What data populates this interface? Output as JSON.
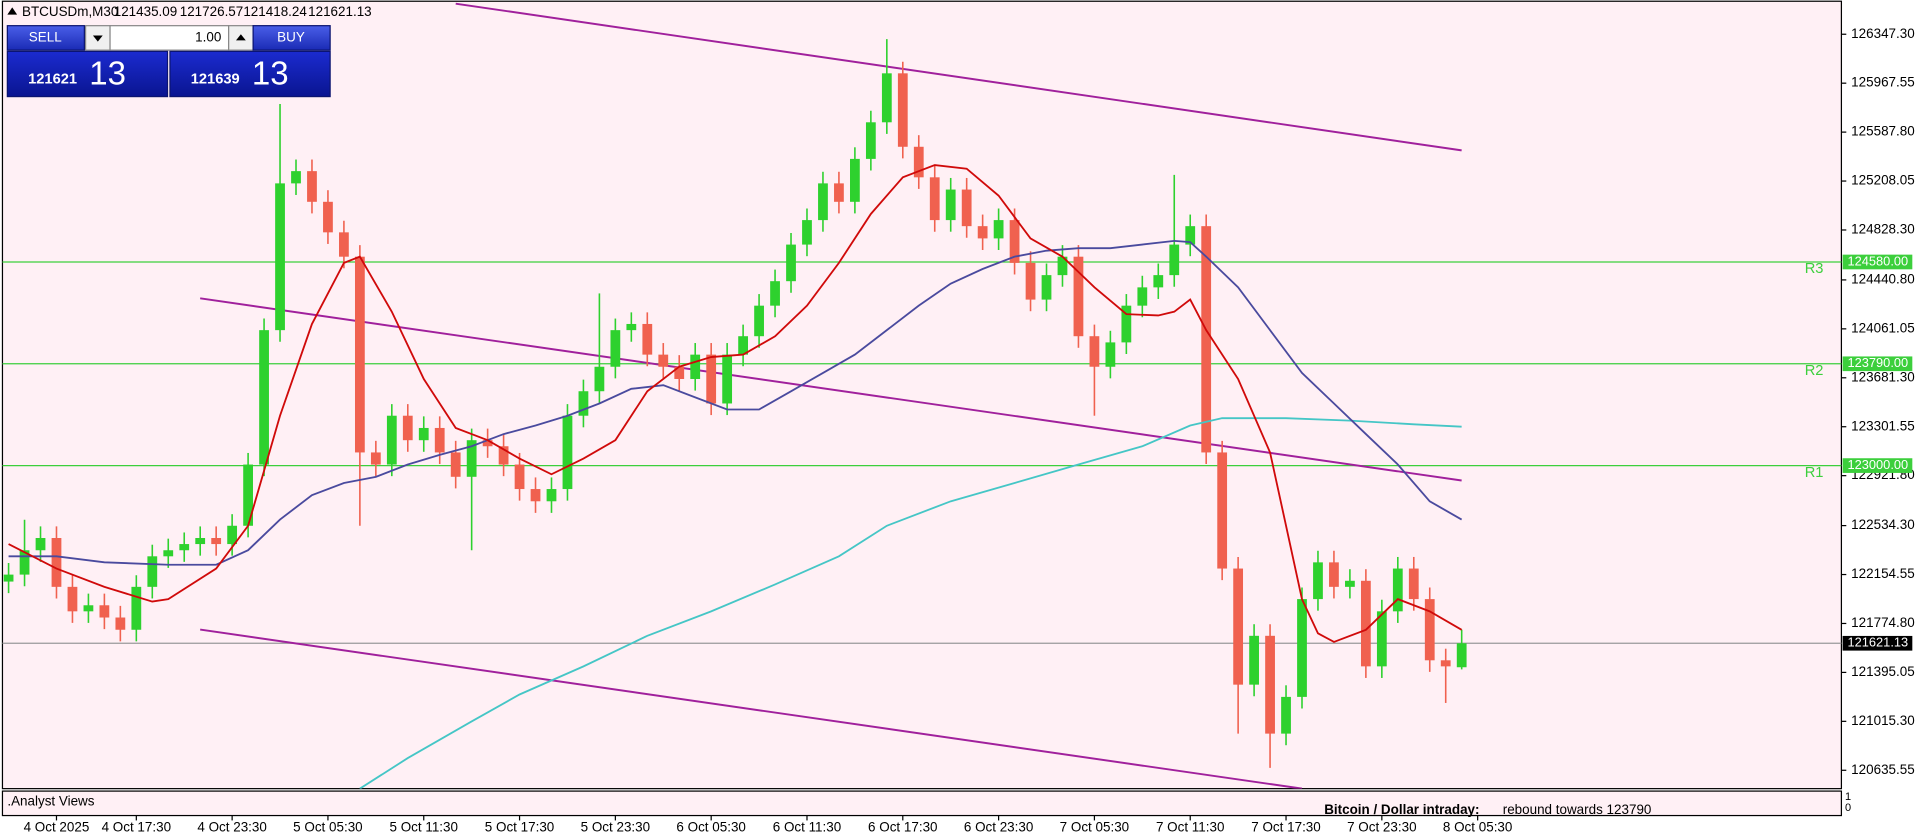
{
  "header": {
    "symbol": "BTCUSDm,M30",
    "ohlc": [
      121435.09,
      121726.57,
      121418.24,
      121621.13
    ]
  },
  "trade_panel": {
    "sell": "SELL",
    "buy": "BUY",
    "lots": "1.00",
    "bid": {
      "main": "121621",
      "big": "13"
    },
    "ask": {
      "main": "121639",
      "big": "13"
    }
  },
  "chart_data": {
    "type": "candlestick",
    "xlim": [
      -0.46,
      114.78
    ],
    "ylim": [
      120493,
      126613
    ],
    "yticks": [
      {
        "value": 126347.3,
        "label": "126347.30"
      },
      125967.55,
      {
        "value": 125587.8,
        "label": "125587.80"
      },
      125208.05,
      {
        "value": 124828.3,
        "label": "124828.30"
      },
      {
        "value": 124440.8,
        "label": "124440.80"
      },
      124061.05,
      {
        "value": 123681.3,
        "label": "123681.30"
      },
      123301.55,
      {
        "value": 122921.8,
        "label": "122921.80"
      },
      {
        "value": 122534.3,
        "label": "122534.30"
      },
      122154.55,
      {
        "value": 121774.8,
        "label": "121774.80"
      },
      121395.05,
      {
        "value": 121015.3,
        "label": "121015.30"
      },
      120635.55
    ],
    "xticks": [
      {
        "value": 3,
        "label": "4 Oct 2025"
      },
      {
        "value": 8,
        "label": "4 Oct 17:30"
      },
      {
        "value": 14,
        "label": "4 Oct 23:30"
      },
      {
        "value": 20,
        "label": "5 Oct 05:30"
      },
      {
        "value": 26,
        "label": "5 Oct 11:30"
      },
      {
        "value": 32,
        "label": "5 Oct 17:30"
      },
      {
        "value": 38,
        "label": "5 Oct 23:30"
      },
      {
        "value": 44,
        "label": "6 Oct 05:30"
      },
      {
        "value": 50,
        "label": "6 Oct 11:30"
      },
      {
        "value": 56,
        "label": "6 Oct 17:30"
      },
      {
        "value": 62,
        "label": "6 Oct 23:30"
      },
      {
        "value": 68,
        "label": "7 Oct 05:30"
      },
      {
        "value": 74,
        "label": "7 Oct 11:30"
      },
      {
        "value": 80,
        "label": "7 Oct 17:30"
      },
      {
        "value": 86,
        "label": "7 Oct 23:30"
      },
      {
        "value": 92,
        "label": "8 Oct 05:30"
      }
    ],
    "candles": {
      "up_color": "#2ed12e",
      "down_color": "#f0614f",
      "open": [
        122100,
        122154,
        122343,
        122438,
        122059,
        121869,
        121916,
        121821,
        121726,
        122059,
        122296,
        122343,
        122391,
        122438,
        122391,
        122533,
        123008,
        124051,
        125190,
        125285,
        125047,
        124810,
        124621,
        123102,
        123008,
        123387,
        123197,
        123292,
        123102,
        122913,
        123197,
        123150,
        123008,
        122818,
        122723,
        122818,
        123387,
        123577,
        123767,
        124051,
        124099,
        123861,
        123767,
        123672,
        123861,
        123482,
        123861,
        124004,
        124241,
        124431,
        124715,
        124905,
        125190,
        125047,
        125380,
        125664,
        126044,
        125474,
        125237,
        124905,
        125142,
        124858,
        124763,
        124905,
        124573,
        124288,
        124478,
        124621,
        124004,
        123767,
        123956,
        124241,
        124383,
        124478,
        124715,
        124858,
        123102,
        122201,
        121300,
        121679,
        120920,
        121205,
        121964,
        122249,
        122059,
        122106,
        121442,
        121869,
        122201,
        121964,
        121489,
        121435.09
      ],
      "high": [
        122244,
        122580,
        122528,
        122528,
        122149,
        122006,
        122006,
        121911,
        122149,
        122386,
        122433,
        122481,
        122528,
        122528,
        122623,
        123098,
        124141,
        125806,
        125375,
        125375,
        125137,
        124900,
        124711,
        123192,
        123477,
        123477,
        123382,
        123382,
        123192,
        123287,
        123287,
        123240,
        123098,
        122908,
        122908,
        123477,
        123667,
        124336,
        124141,
        124189,
        124189,
        123951,
        123857,
        123951,
        123951,
        123951,
        124094,
        124331,
        124521,
        124805,
        124995,
        125280,
        125280,
        125470,
        125754,
        126309,
        126134,
        125564,
        125327,
        125232,
        125232,
        124948,
        124995,
        124995,
        124663,
        124568,
        124711,
        124711,
        124094,
        124046,
        124331,
        124473,
        124568,
        125256,
        124948,
        124948,
        123192,
        122291,
        121769,
        121769,
        121295,
        122054,
        122339,
        122339,
        122196,
        122196,
        121959,
        122291,
        122291,
        122054,
        121579,
        121726.57
      ],
      "low": [
        122010,
        122064,
        122253,
        121969,
        121779,
        121779,
        121731,
        121636,
        121636,
        121969,
        122206,
        122253,
        122301,
        122301,
        122301,
        122443,
        122918,
        123961,
        125100,
        124957,
        124720,
        124531,
        122533,
        122918,
        122918,
        123107,
        123107,
        123012,
        122823,
        122343,
        123060,
        122918,
        122728,
        122633,
        122633,
        122728,
        123297,
        123487,
        123677,
        123961,
        123771,
        123677,
        123582,
        123582,
        123392,
        123392,
        123771,
        123914,
        124151,
        124341,
        124625,
        124815,
        124957,
        124957,
        125290,
        125574,
        125384,
        125147,
        124815,
        124815,
        124768,
        124673,
        124673,
        124483,
        124198,
        124198,
        124388,
        123914,
        123387,
        123677,
        123866,
        124151,
        124293,
        124388,
        124625,
        123012,
        122111,
        120920,
        121210,
        120654,
        120830,
        121115,
        121874,
        121969,
        121969,
        121352,
        121352,
        121779,
        121874,
        121399,
        121158,
        121418.24
      ],
      "close": [
        122154,
        122343,
        122438,
        122059,
        121869,
        121916,
        121821,
        121726,
        122059,
        122296,
        122343,
        122391,
        122438,
        122391,
        122533,
        123008,
        124051,
        125190,
        125285,
        125047,
        124810,
        124621,
        123102,
        123008,
        123387,
        123197,
        123292,
        123102,
        122913,
        123197,
        123150,
        123008,
        122818,
        122723,
        122818,
        123387,
        123577,
        123767,
        124051,
        124099,
        123861,
        123767,
        123672,
        123861,
        123482,
        123861,
        124004,
        124241,
        124431,
        124715,
        124905,
        125190,
        125047,
        125380,
        125664,
        126044,
        125474,
        125237,
        124905,
        125142,
        124858,
        124763,
        124905,
        124573,
        124288,
        124478,
        124621,
        124004,
        123767,
        123956,
        124241,
        124383,
        124478,
        124715,
        124858,
        123102,
        122201,
        121300,
        121679,
        120920,
        121205,
        121964,
        122249,
        122059,
        122106,
        121442,
        121869,
        122201,
        121964,
        121489,
        121442,
        121621.13
      ]
    },
    "lines": [
      {
        "color": "#45c6c6",
        "x": [
          22,
          25,
          29,
          32,
          36,
          40,
          44,
          48,
          52,
          55,
          59,
          63,
          67,
          71,
          74,
          76,
          80,
          84,
          88,
          91
        ],
        "values": [
          120493,
          120730,
          121015,
          121224,
          121442,
          121679,
          121869,
          122078,
          122296,
          122533,
          122723,
          122865,
          123008,
          123150,
          123311,
          123368,
          123368,
          123349,
          123321,
          123302
        ]
      },
      {
        "color": "#4a4a9e",
        "x": [
          0,
          3,
          6,
          10,
          13,
          15,
          17,
          19,
          21,
          23,
          25,
          27,
          29,
          31,
          33,
          35,
          37,
          39,
          41,
          43,
          45,
          47,
          49,
          51,
          53,
          55,
          57,
          59,
          61,
          63,
          65,
          67,
          69,
          71,
          73,
          74,
          75,
          77,
          79,
          81,
          83,
          85,
          87,
          89,
          91
        ],
        "values": [
          122296,
          122296,
          122249,
          122230,
          122230,
          122343,
          122581,
          122770,
          122865,
          122913,
          123008,
          123083,
          123150,
          123245,
          123311,
          123387,
          123482,
          123596,
          123624,
          123529,
          123435,
          123435,
          123577,
          123719,
          123861,
          124051,
          124241,
          124412,
          124526,
          124621,
          124668,
          124687,
          124687,
          124715,
          124744,
          124734,
          124621,
          124383,
          124051,
          123719,
          123482,
          123245,
          123008,
          122723,
          122581
        ]
      },
      {
        "color": "#d00a0a",
        "x": [
          0,
          3,
          6,
          9,
          10,
          13,
          15,
          17,
          19,
          21,
          22,
          24,
          26,
          28,
          30,
          32,
          34,
          36,
          38,
          40,
          42,
          44,
          46,
          48,
          50,
          52,
          54,
          56,
          58,
          60,
          62,
          64,
          66,
          68,
          70,
          72,
          73,
          74,
          75,
          77,
          79,
          80,
          81,
          82,
          83,
          85,
          87,
          89,
          91
        ],
        "values": [
          122391,
          122201,
          122059,
          121945,
          121964,
          122201,
          122533,
          123387,
          124099,
          124573,
          124621,
          124194,
          123672,
          123292,
          123197,
          123055,
          122932,
          123055,
          123197,
          123577,
          123767,
          123842,
          123861,
          124004,
          124241,
          124573,
          124953,
          125237,
          125332,
          125304,
          125095,
          124763,
          124621,
          124383,
          124175,
          124165,
          124194,
          124288,
          124051,
          123672,
          123102,
          122533,
          121964,
          121698,
          121632,
          121726,
          121964,
          121869,
          121726
        ]
      }
    ],
    "trendlines": [
      {
        "color": "#a0209c",
        "x": [
          28,
          91
        ],
        "values": [
          126585,
          125446
        ]
      },
      {
        "color": "#a0209c",
        "x": [
          12,
          91
        ],
        "values": [
          124298,
          122884
        ]
      },
      {
        "color": "#a0209c",
        "x": [
          12,
          81
        ],
        "values": [
          121727,
          120493
        ]
      }
    ],
    "levels": [
      {
        "name": "R3",
        "value": 124580,
        "label": "124580.00",
        "color": "#3ccf3c"
      },
      {
        "name": "R2",
        "value": 123790,
        "label": "123790.00",
        "color": "#3ccf3c"
      },
      {
        "name": "R1",
        "value": 123000,
        "label": "123000.00",
        "color": "#3ccf3c"
      }
    ],
    "current_price": 121621.13
  },
  "indicator_panel": {
    "title": ".Analyst Views",
    "axis": [
      "1",
      "0"
    ],
    "headline": "Bitcoin / Dollar intraday:",
    "text": "rebound towards 123790"
  }
}
